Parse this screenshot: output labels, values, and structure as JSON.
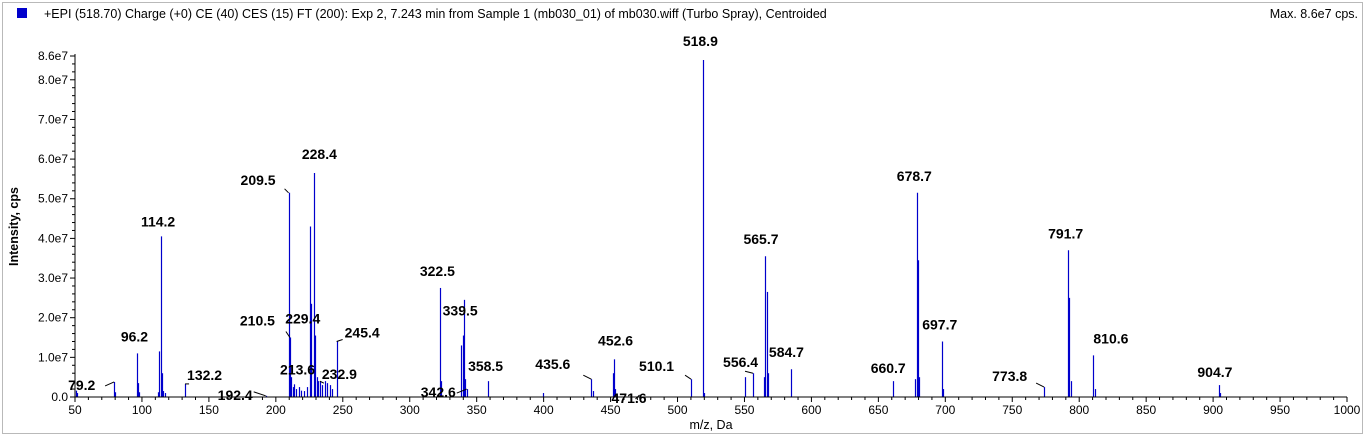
{
  "header": {
    "title": "+EPI (518.70) Charge (+0) CE (40) CES (15) FT (200): Exp 2, 7.243 min from Sample 1 (mb030_01) of mb030.wiff (Turbo Spray), Centroided",
    "max_label": "Max. 8.6e7 cps."
  },
  "colors": {
    "peak": "#0000cc",
    "axis": "#000000",
    "frame": "#b9b9b9"
  },
  "chart_data": {
    "type": "bar",
    "xlabel": "m/z, Da",
    "ylabel": "Intensity, cps",
    "xlim": [
      50,
      1000
    ],
    "ylim": [
      0,
      86000000.0
    ],
    "x_ticks": [
      50,
      100,
      150,
      200,
      250,
      300,
      350,
      400,
      450,
      500,
      550,
      600,
      650,
      700,
      750,
      800,
      850,
      900,
      950,
      1000
    ],
    "y_ticks": [
      {
        "value": 0,
        "label": "0.0"
      },
      {
        "value": 10000000.0,
        "label": "1.0e7"
      },
      {
        "value": 20000000.0,
        "label": "2.0e7"
      },
      {
        "value": 30000000.0,
        "label": "3.0e7"
      },
      {
        "value": 40000000.0,
        "label": "4.0e7"
      },
      {
        "value": 50000000.0,
        "label": "5.0e7"
      },
      {
        "value": 60000000.0,
        "label": "6.0e7"
      },
      {
        "value": 70000000.0,
        "label": "7.0e7"
      },
      {
        "value": 80000000.0,
        "label": "8.0e7"
      },
      {
        "value": 86000000.0,
        "label": "8.6e7"
      }
    ],
    "peaks": [
      {
        "mz": 50.5,
        "intensity": 1600000.0
      },
      {
        "mz": 51.5,
        "intensity": 1000000.0
      },
      {
        "mz": 79.2,
        "intensity": 3800000.0
      },
      {
        "mz": 80.0,
        "intensity": 1200000.0
      },
      {
        "mz": 96.2,
        "intensity": 11000000.0
      },
      {
        "mz": 97.0,
        "intensity": 3500000.0
      },
      {
        "mz": 98.0,
        "intensity": 1200000.0
      },
      {
        "mz": 112.0,
        "intensity": 1200000.0
      },
      {
        "mz": 113.0,
        "intensity": 11500000.0
      },
      {
        "mz": 114.2,
        "intensity": 40500000.0
      },
      {
        "mz": 115.0,
        "intensity": 6000000.0
      },
      {
        "mz": 116.0,
        "intensity": 1500000.0
      },
      {
        "mz": 117.0,
        "intensity": 1000000.0
      },
      {
        "mz": 132.2,
        "intensity": 3300000.0
      },
      {
        "mz": 192.4,
        "intensity": 300000.0
      },
      {
        "mz": 209.5,
        "intensity": 51500000.0
      },
      {
        "mz": 210.5,
        "intensity": 15000000.0
      },
      {
        "mz": 211.3,
        "intensity": 5000000.0
      },
      {
        "mz": 212.5,
        "intensity": 2500000.0
      },
      {
        "mz": 213.6,
        "intensity": 3200000.0
      },
      {
        "mz": 215.0,
        "intensity": 2000000.0
      },
      {
        "mz": 217.0,
        "intensity": 2500000.0
      },
      {
        "mz": 219.0,
        "intensity": 1600000.0
      },
      {
        "mz": 221.0,
        "intensity": 1500000.0
      },
      {
        "mz": 223.0,
        "intensity": 2500000.0
      },
      {
        "mz": 225.5,
        "intensity": 43000000.0
      },
      {
        "mz": 226.5,
        "intensity": 23500000.0
      },
      {
        "mz": 228.4,
        "intensity": 56500000.0
      },
      {
        "mz": 229.4,
        "intensity": 15500000.0
      },
      {
        "mz": 230.5,
        "intensity": 5000000.0
      },
      {
        "mz": 231.5,
        "intensity": 4000000.0
      },
      {
        "mz": 232.9,
        "intensity": 4000000.0
      },
      {
        "mz": 234.5,
        "intensity": 3000000.0
      },
      {
        "mz": 236.5,
        "intensity": 4000000.0
      },
      {
        "mz": 238.5,
        "intensity": 3500000.0
      },
      {
        "mz": 240.5,
        "intensity": 3000000.0
      },
      {
        "mz": 242.0,
        "intensity": 2000000.0
      },
      {
        "mz": 245.4,
        "intensity": 14000000.0
      },
      {
        "mz": 322.5,
        "intensity": 27500000.0
      },
      {
        "mz": 323.5,
        "intensity": 4000000.0
      },
      {
        "mz": 338.5,
        "intensity": 13000000.0
      },
      {
        "mz": 339.5,
        "intensity": 15500000.0
      },
      {
        "mz": 340.5,
        "intensity": 24500000.0
      },
      {
        "mz": 341.5,
        "intensity": 4500000.0
      },
      {
        "mz": 342.6,
        "intensity": 2000000.0
      },
      {
        "mz": 358.5,
        "intensity": 4000000.0
      },
      {
        "mz": 399.5,
        "intensity": 1000000.0
      },
      {
        "mz": 435.6,
        "intensity": 4500000.0
      },
      {
        "mz": 436.5,
        "intensity": 1500000.0
      },
      {
        "mz": 451.5,
        "intensity": 6000000.0
      },
      {
        "mz": 452.6,
        "intensity": 9500000.0
      },
      {
        "mz": 453.5,
        "intensity": 2000000.0
      },
      {
        "mz": 471.6,
        "intensity": 500000.0
      },
      {
        "mz": 510.1,
        "intensity": 4500000.0
      },
      {
        "mz": 518.9,
        "intensity": 85000000.0
      },
      {
        "mz": 519.9,
        "intensity": 1000000.0
      },
      {
        "mz": 550.5,
        "intensity": 5000000.0
      },
      {
        "mz": 556.4,
        "intensity": 6000000.0
      },
      {
        "mz": 564.5,
        "intensity": 5000000.0
      },
      {
        "mz": 565.7,
        "intensity": 35500000.0
      },
      {
        "mz": 566.5,
        "intensity": 26500000.0
      },
      {
        "mz": 567.5,
        "intensity": 6000000.0
      },
      {
        "mz": 584.7,
        "intensity": 7000000.0
      },
      {
        "mz": 660.7,
        "intensity": 4000000.0
      },
      {
        "mz": 677.5,
        "intensity": 4500000.0
      },
      {
        "mz": 678.7,
        "intensity": 51500000.0
      },
      {
        "mz": 679.5,
        "intensity": 34500000.0
      },
      {
        "mz": 680.5,
        "intensity": 5000000.0
      },
      {
        "mz": 697.7,
        "intensity": 14000000.0
      },
      {
        "mz": 698.5,
        "intensity": 2000000.0
      },
      {
        "mz": 773.8,
        "intensity": 2500000.0
      },
      {
        "mz": 791.7,
        "intensity": 37000000.0
      },
      {
        "mz": 792.5,
        "intensity": 25000000.0
      },
      {
        "mz": 793.5,
        "intensity": 4000000.0
      },
      {
        "mz": 810.6,
        "intensity": 10500000.0
      },
      {
        "mz": 811.5,
        "intensity": 2000000.0
      },
      {
        "mz": 904.7,
        "intensity": 3000000.0
      },
      {
        "mz": 905.5,
        "intensity": 1000000.0
      }
    ],
    "annotations": [
      {
        "label": "79.2",
        "mz": 79.2,
        "intensity": 3800000.0
      },
      {
        "label": "96.2",
        "mz": 96.2,
        "intensity": 11000000.0
      },
      {
        "label": "114.2",
        "mz": 114.2,
        "intensity": 40500000.0
      },
      {
        "label": "132.2",
        "mz": 132.2,
        "intensity": 3300000.0
      },
      {
        "label": "192.4",
        "mz": 192.4,
        "intensity": 300000.0
      },
      {
        "label": "209.5",
        "mz": 209.5,
        "intensity": 51500000.0
      },
      {
        "label": "210.5",
        "mz": 210.5,
        "intensity": 15000000.0
      },
      {
        "label": "213.6",
        "mz": 213.6,
        "intensity": 3200000.0
      },
      {
        "label": "228.4",
        "mz": 228.4,
        "intensity": 56500000.0
      },
      {
        "label": "229.4",
        "mz": 229.4,
        "intensity": 15500000.0
      },
      {
        "label": "232.9",
        "mz": 232.9,
        "intensity": 4000000.0
      },
      {
        "label": "245.4",
        "mz": 245.4,
        "intensity": 14000000.0
      },
      {
        "label": "322.5",
        "mz": 322.5,
        "intensity": 27500000.0
      },
      {
        "label": "339.5",
        "mz": 339.5,
        "intensity": 15500000.0
      },
      {
        "label": "342.6",
        "mz": 342.6,
        "intensity": 2000000.0
      },
      {
        "label": "358.5",
        "mz": 358.5,
        "intensity": 4000000.0
      },
      {
        "label": "435.6",
        "mz": 435.6,
        "intensity": 4500000.0
      },
      {
        "label": "452.6",
        "mz": 452.6,
        "intensity": 9500000.0
      },
      {
        "label": "471.6",
        "mz": 471.6,
        "intensity": 500000.0
      },
      {
        "label": "510.1",
        "mz": 510.1,
        "intensity": 4500000.0
      },
      {
        "label": "518.9",
        "mz": 518.9,
        "intensity": 85000000.0
      },
      {
        "label": "556.4",
        "mz": 556.4,
        "intensity": 6000000.0
      },
      {
        "label": "565.7",
        "mz": 565.7,
        "intensity": 35500000.0
      },
      {
        "label": "584.7",
        "mz": 584.7,
        "intensity": 7000000.0
      },
      {
        "label": "660.7",
        "mz": 660.7,
        "intensity": 4000000.0
      },
      {
        "label": "678.7",
        "mz": 678.7,
        "intensity": 51500000.0
      },
      {
        "label": "697.7",
        "mz": 697.7,
        "intensity": 14000000.0
      },
      {
        "label": "773.8",
        "mz": 773.8,
        "intensity": 2500000.0
      },
      {
        "label": "791.7",
        "mz": 791.7,
        "intensity": 37000000.0
      },
      {
        "label": "810.6",
        "mz": 810.6,
        "intensity": 10500000.0
      },
      {
        "label": "904.7",
        "mz": 904.7,
        "intensity": 3000000.0
      }
    ]
  }
}
